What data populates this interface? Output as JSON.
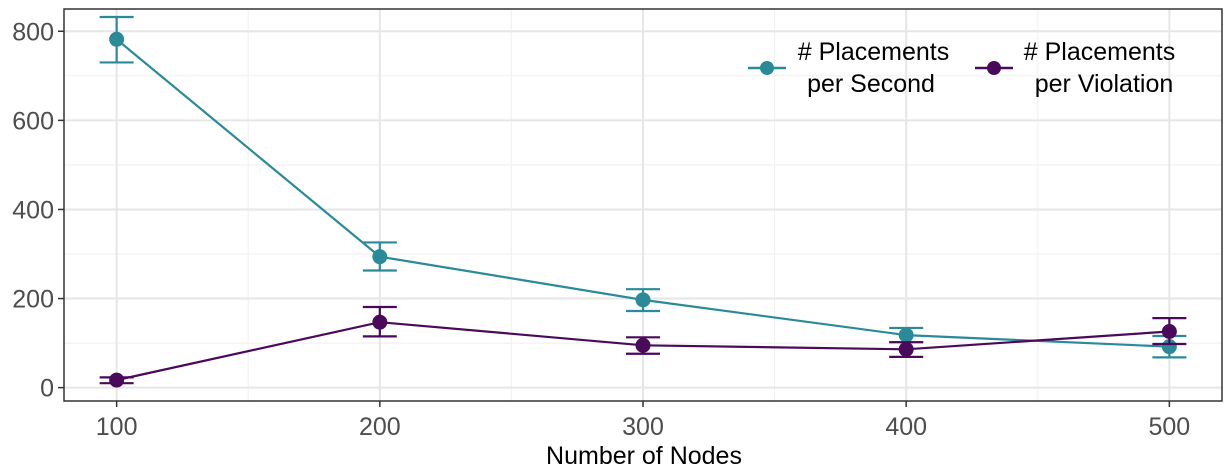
{
  "chart_data": {
    "type": "line",
    "title": "",
    "xlabel": "Number of Nodes",
    "ylabel": "",
    "x": [
      100,
      200,
      300,
      400,
      500
    ],
    "x_ticks": [
      "100",
      "200",
      "300",
      "400",
      "500"
    ],
    "y_ticks": [
      "0",
      "200",
      "400",
      "600",
      "800"
    ],
    "xlim": [
      80,
      520
    ],
    "ylim": [
      -30,
      850
    ],
    "grid": true,
    "legend_position": "top-right",
    "series": [
      {
        "key": "per_second",
        "name_lines": [
          "# Placements",
          "per Second"
        ],
        "color": "#2A8A98",
        "values": [
          782,
          294,
          197,
          118,
          92
        ],
        "err_low": [
          730,
          263,
          172,
          102,
          68
        ],
        "err_high": [
          832,
          326,
          221,
          134,
          116
        ]
      },
      {
        "key": "per_violation",
        "name_lines": [
          "# Placements",
          "per Violation"
        ],
        "color": "#4A0A5A",
        "values": [
          17,
          147,
          95,
          86,
          126
        ],
        "err_low": [
          10,
          115,
          76,
          69,
          98
        ],
        "err_high": [
          23,
          181,
          113,
          102,
          156
        ]
      }
    ]
  }
}
